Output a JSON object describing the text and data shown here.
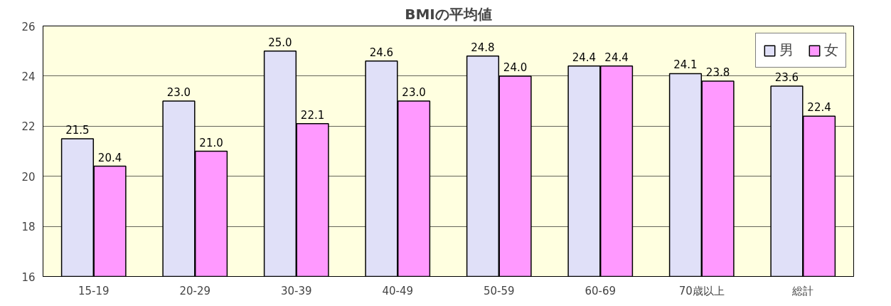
{
  "chart_data": {
    "type": "bar",
    "title": "BMIの平均値",
    "categories": [
      "15-19",
      "20-29",
      "30-39",
      "40-49",
      "50-59",
      "60-69",
      "70歳以上",
      "総計"
    ],
    "series": [
      {
        "name": "男",
        "color": "#e0e0f8",
        "values": [
          21.5,
          23.0,
          25.0,
          24.6,
          24.8,
          24.4,
          24.1,
          23.6
        ],
        "value_labels": [
          "21.5",
          "23.0",
          "25.0",
          "24.6",
          "24.8",
          "24.4",
          "24.1",
          "23.6"
        ]
      },
      {
        "name": "女",
        "color": "#ff99ff",
        "values": [
          20.4,
          21.0,
          22.1,
          23.0,
          24.0,
          24.4,
          23.8,
          22.4
        ],
        "value_labels": [
          "20.4",
          "21.0",
          "22.1",
          "23.0",
          "24.0",
          "24.4",
          "23.8",
          "22.4"
        ]
      }
    ],
    "ylim": [
      16,
      26
    ],
    "yticks": [
      16,
      18,
      20,
      22,
      24,
      26
    ],
    "grid": "y",
    "legend": "top right"
  }
}
